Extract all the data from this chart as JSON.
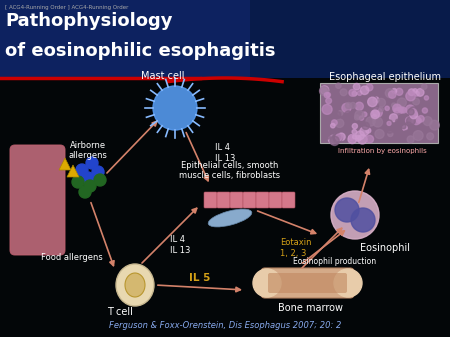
{
  "title_line1": "Pathophysiology",
  "title_line2": "of eosinophilic esophagitis",
  "subtitle": "[ ACG4-Running Order ] ACG4-Running Order",
  "citation": "Ferguson & Foxx-Orenstein, Dis Esophagus 2007; 20: 2",
  "bg_color": "#030608",
  "header_bg": "#0a1a4a",
  "title_color": "#ffffff",
  "title_fontsize": 13,
  "arrow_color": "#d4826a",
  "text_color": "#ffffff",
  "il5_color": "#d4a017",
  "eotaxin_color": "#d4a017",
  "labels": {
    "mast_cell": "Mast cell",
    "airborne": "Airborne\nallergens",
    "food": "Food allergens",
    "epithelial": "Epithelial cells, smooth\nmuscle cells, fibroblasts",
    "esoph_epi": "Esophageal epithelium",
    "infiltration": "Infiltration by eosinophils",
    "eosinophil": "Eosinophil",
    "eotaxin": "Eotaxin\n1, 2, 3",
    "il4_il13_upper": "IL 4\nIL 13",
    "il4_il13_lower": "IL 4\nIL 13",
    "il5": "IL 5",
    "tcell": "T cell",
    "bone_marrow": "Bone marrow",
    "eo_production": "Eosinophil production"
  }
}
